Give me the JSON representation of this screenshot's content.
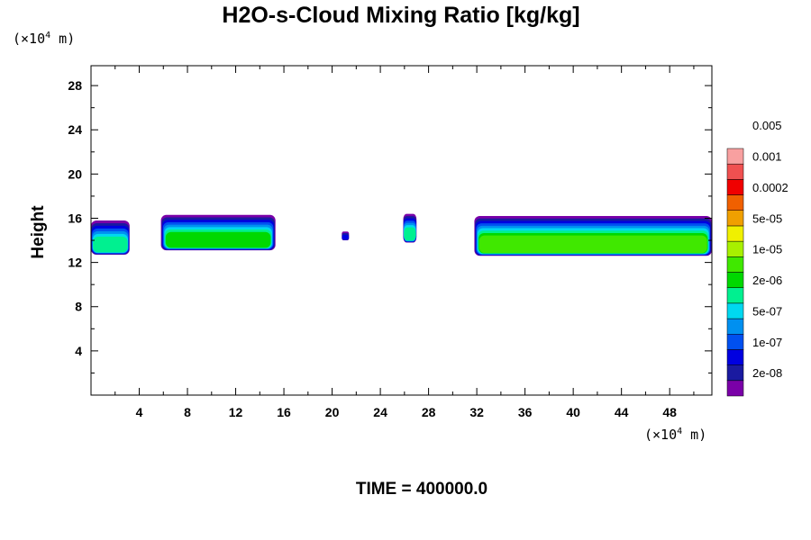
{
  "chart_data": {
    "type": "heatmap",
    "title": "H2O-s-Cloud Mixing Ratio [kg/kg]",
    "ylabel": "Height",
    "xunit": "(×10",
    "xunit_exp": "4",
    "xunit_tail": " m)",
    "yunit": "(×10",
    "yunit_exp": "4",
    "yunit_tail": " m)",
    "footer": "TIME = 400000.0",
    "xlim": [
      0,
      51.5
    ],
    "ylim": [
      0,
      29.8
    ],
    "x_ticks": [
      4,
      8,
      12,
      16,
      20,
      24,
      28,
      32,
      36,
      40,
      44,
      48
    ],
    "x_tick_labels": [
      "4",
      "8",
      "12",
      "16",
      "20",
      "24",
      "28",
      "32",
      "36",
      "40",
      "44",
      "48"
    ],
    "y_ticks": [
      4,
      8,
      12,
      16,
      20,
      24,
      28
    ],
    "y_tick_labels": [
      "4",
      "8",
      "12",
      "16",
      "20",
      "24",
      "28"
    ],
    "colorbar": {
      "colors": [
        "#7a00a8",
        "#1a1aa0",
        "#0000e0",
        "#0050f0",
        "#0090f0",
        "#00d8f0",
        "#00f090",
        "#00d800",
        "#40e800",
        "#a8f000",
        "#f0f000",
        "#f0a000",
        "#f06000",
        "#f00000",
        "#f05050",
        "#f8a0a0"
      ],
      "labels": [
        "2e-08",
        "1e-07",
        "5e-07",
        "2e-06",
        "1e-05",
        "5e-05",
        "0.0002",
        "0.001",
        "0.005"
      ]
    },
    "cloud_regions": [
      {
        "x": [
          0,
          3.2
        ],
        "bottom": 12.7,
        "top": 15.8,
        "max_level": 7
      },
      {
        "x": [
          5.8,
          15.3
        ],
        "bottom": 13.1,
        "top": 16.3,
        "max_level": 8
      },
      {
        "x": [
          20.8,
          21.4
        ],
        "bottom": 14.0,
        "top": 14.8,
        "max_level": 3
      },
      {
        "x": [
          25.9,
          27.0
        ],
        "bottom": 13.8,
        "top": 16.4,
        "max_level": 7
      },
      {
        "x": [
          31.8,
          51.5
        ],
        "bottom": 12.6,
        "top": 16.2,
        "max_level": 9
      }
    ]
  }
}
